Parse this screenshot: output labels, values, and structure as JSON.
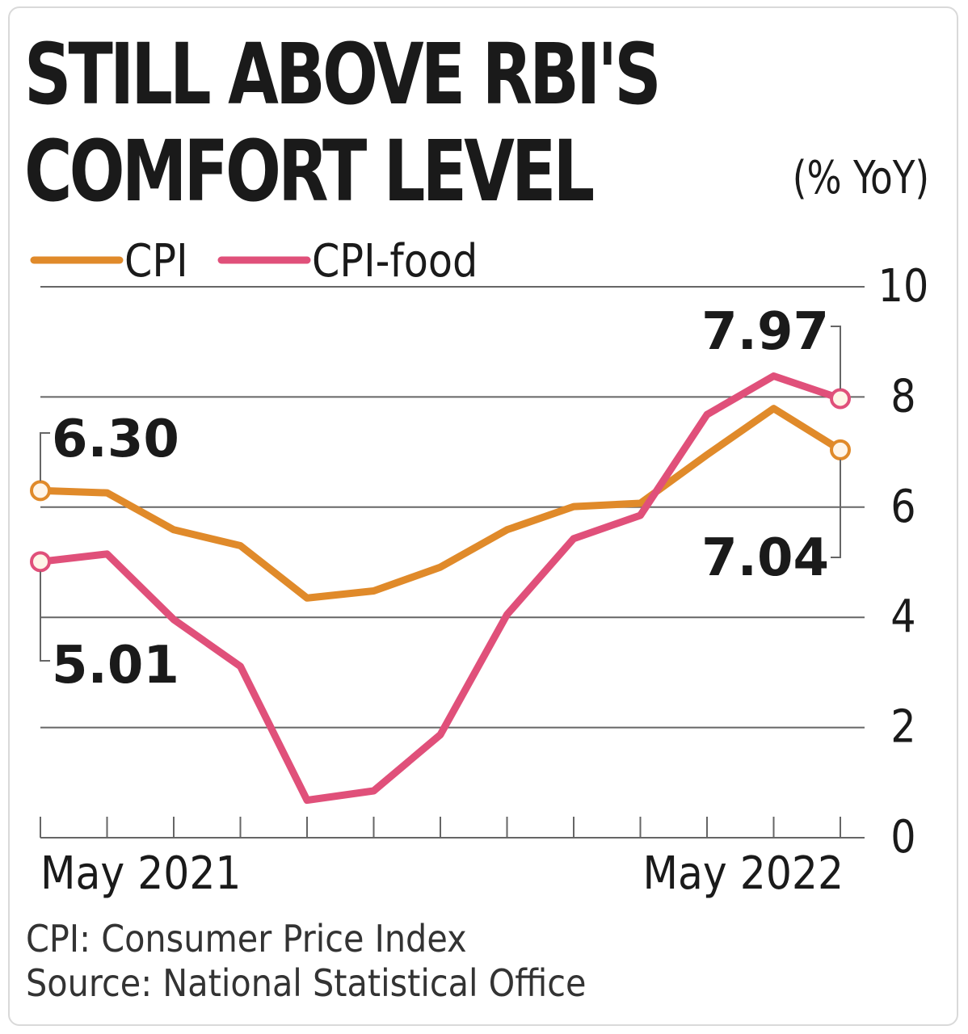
{
  "header": {
    "title_line1": "STILL ABOVE RBI'S",
    "title_line2": "COMFORT LEVEL",
    "unit": "(% YoY)"
  },
  "footer": {
    "note": "CPI: Consumer Price Index",
    "source": "Source: National Statistical Office"
  },
  "colors": {
    "cpi": "#e08a2a",
    "cpi_food": "#e0507a",
    "grid": "#666666",
    "text": "#1a1a1a"
  },
  "chart_data": {
    "type": "line",
    "x": [
      "2021-05",
      "2021-06",
      "2021-07",
      "2021-08",
      "2021-09",
      "2021-10",
      "2021-11",
      "2021-12",
      "2022-01",
      "2022-02",
      "2022-03",
      "2022-04",
      "2022-05"
    ],
    "x_tick_labels": [
      {
        "index": 0,
        "label": "May 2021"
      },
      {
        "index": 12,
        "label": "May 2022"
      }
    ],
    "series": [
      {
        "name": "CPI",
        "values": [
          6.3,
          6.26,
          5.59,
          5.3,
          4.35,
          4.48,
          4.91,
          5.59,
          6.01,
          6.07,
          6.95,
          7.79,
          7.04
        ]
      },
      {
        "name": "CPI-food",
        "values": [
          5.01,
          5.15,
          3.96,
          3.11,
          0.68,
          0.85,
          1.87,
          4.05,
          5.43,
          5.85,
          7.68,
          8.38,
          7.97
        ]
      }
    ],
    "annotations": [
      {
        "label": "6.30",
        "series": "CPI",
        "index": 0
      },
      {
        "label": "5.01",
        "series": "CPI-food",
        "index": 0
      },
      {
        "label": "7.97",
        "series": "CPI-food",
        "index": 12
      },
      {
        "label": "7.04",
        "series": "CPI",
        "index": 12
      }
    ],
    "yticks": [
      0,
      2,
      4,
      6,
      8,
      10
    ],
    "ylim": [
      0,
      10
    ],
    "legend_position": "top-left",
    "grid": true
  }
}
